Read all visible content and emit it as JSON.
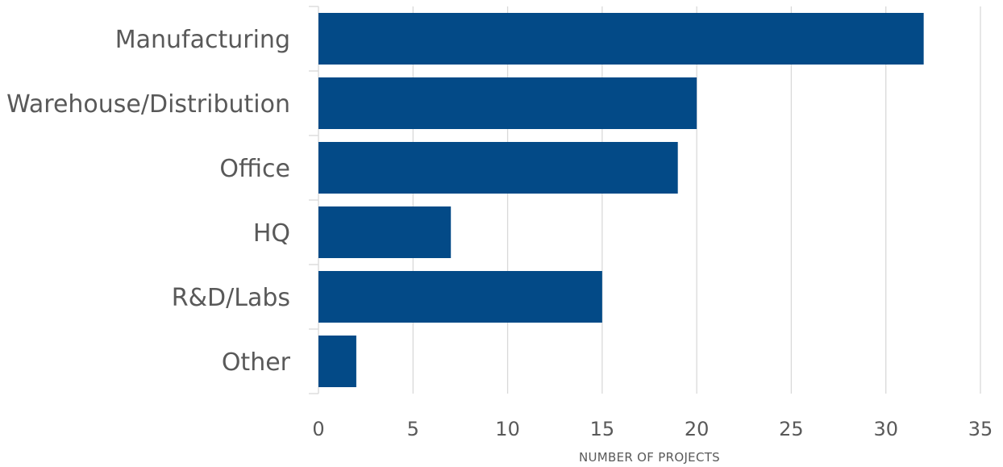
{
  "chart_data": {
    "type": "bar",
    "orientation": "horizontal",
    "categories": [
      "Manufacturing",
      "Warehouse/Distribution",
      "Office",
      "HQ",
      "R&D/Labs",
      "Other"
    ],
    "values": [
      32,
      20,
      19,
      7,
      15,
      2
    ],
    "xlabel": "NUMBER OF PROJECTS",
    "ylabel": "",
    "xlim": [
      0,
      35
    ],
    "xticks": [
      "0",
      "5",
      "10",
      "15",
      "20",
      "25",
      "30",
      "35"
    ],
    "grid": "vertical",
    "legend": "none",
    "bar_color": "#034a87",
    "text_color": "#595959",
    "grid_color": "#d9d9d9"
  }
}
